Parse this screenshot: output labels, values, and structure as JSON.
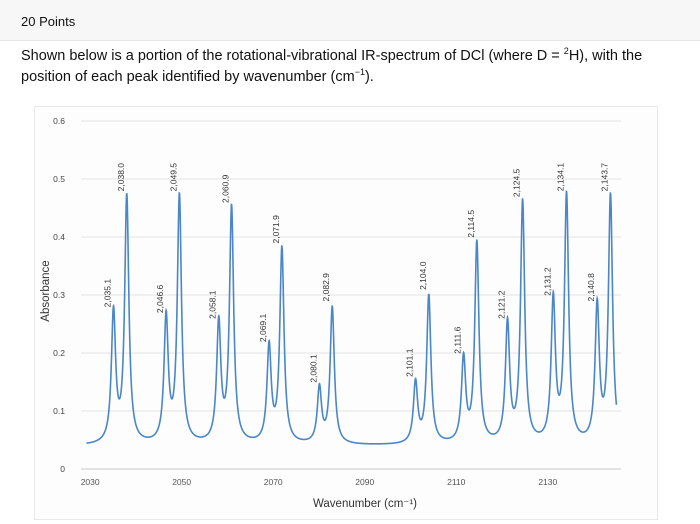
{
  "header": {
    "points": "20 Points"
  },
  "question": {
    "text_a": "Shown below is a portion of the rotational-vibrational IR-spectrum of DCl (where D = ",
    "sup_2": "2",
    "text_b": "H), with the position of each peak identified by wavenumber (cm",
    "sup_neg1": "−1",
    "text_c": ")."
  },
  "chart_data": {
    "type": "line",
    "xlabel": "Wavenumber (cm⁻¹)",
    "ylabel": "Absorbance",
    "xlim": [
      2028,
      2146
    ],
    "ylim": [
      0,
      0.6
    ],
    "xticks": [
      2030,
      2050,
      2070,
      2090,
      2110,
      2130
    ],
    "yticks": [
      0,
      0.1,
      0.2,
      0.3,
      0.4,
      0.5,
      0.6
    ],
    "grid": "horizontal",
    "line_color": "#4a86c8",
    "baseline": 0.04,
    "peaks": [
      {
        "x": 2035.1,
        "y": 0.265,
        "label": "2,035.1"
      },
      {
        "x": 2038.0,
        "y": 0.465,
        "label": "2,038.0"
      },
      {
        "x": 2046.6,
        "y": 0.255,
        "label": "2,046.6"
      },
      {
        "x": 2049.5,
        "y": 0.465,
        "label": "2,049.5"
      },
      {
        "x": 2058.1,
        "y": 0.245,
        "label": "2,058.1"
      },
      {
        "x": 2060.9,
        "y": 0.445,
        "label": "2,060.9"
      },
      {
        "x": 2069.1,
        "y": 0.205,
        "label": "2,069.1"
      },
      {
        "x": 2071.9,
        "y": 0.375,
        "label": "2,071.9"
      },
      {
        "x": 2080.1,
        "y": 0.135,
        "label": "2,080.1"
      },
      {
        "x": 2082.9,
        "y": 0.275,
        "label": "2,082.9"
      },
      {
        "x": 2101.1,
        "y": 0.145,
        "label": "2,101.1"
      },
      {
        "x": 2104.0,
        "y": 0.295,
        "label": "2,104.0"
      },
      {
        "x": 2111.6,
        "y": 0.185,
        "label": "2,111.6"
      },
      {
        "x": 2114.5,
        "y": 0.385,
        "label": "2,114.5"
      },
      {
        "x": 2121.2,
        "y": 0.245,
        "label": "2,121.2"
      },
      {
        "x": 2124.5,
        "y": 0.455,
        "label": "2,124.5"
      },
      {
        "x": 2131.2,
        "y": 0.285,
        "label": "2,131.2"
      },
      {
        "x": 2134.1,
        "y": 0.465,
        "label": "2,134.1"
      },
      {
        "x": 2140.8,
        "y": 0.275,
        "label": "2,140.8"
      },
      {
        "x": 2143.7,
        "y": 0.465,
        "label": "2,143.7"
      }
    ]
  }
}
